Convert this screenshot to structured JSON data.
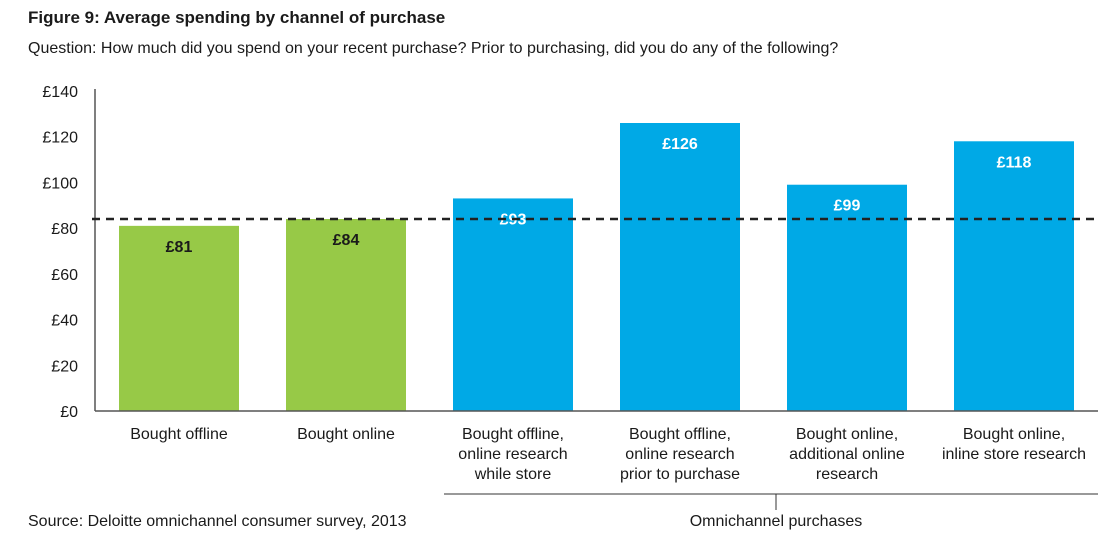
{
  "title": "Figure 9: Average spending by channel of purchase",
  "subtitle": "Question: How much did you spend on your recent purchase? Prior to purchasing, did you do any of the following?",
  "source": "Source: Deloitte omnichannel consumer survey, 2013",
  "group_label": "Omnichannel purchases",
  "chart_data": {
    "type": "bar",
    "categories": [
      [
        "Bought offline"
      ],
      [
        "Bought online"
      ],
      [
        "Bought offline,",
        "online research",
        "while store"
      ],
      [
        "Bought offline,",
        "online research",
        "prior to purchase"
      ],
      [
        "Bought online,",
        "additional online",
        "research"
      ],
      [
        "Bought online,",
        "inline store research"
      ]
    ],
    "values": [
      81,
      84,
      93,
      126,
      99,
      118
    ],
    "data_labels": [
      "£81",
      "£84",
      "£93",
      "£126",
      "£99",
      "£118"
    ],
    "colors": [
      "#97c947",
      "#97c947",
      "#00a9e6",
      "#00a9e6",
      "#00a9e6",
      "#00a9e6"
    ],
    "label_colors": [
      "#1a1a1a",
      "#1a1a1a",
      "#ffffff",
      "#ffffff",
      "#ffffff",
      "#ffffff"
    ],
    "reference_line": {
      "value": 84,
      "style": "dashed"
    },
    "ylim": [
      0,
      140
    ],
    "yticks": [
      0,
      20,
      40,
      60,
      80,
      100,
      120,
      140
    ],
    "ytick_labels": [
      "£0",
      "£20",
      "£40",
      "£60",
      "£80",
      "£100",
      "£120",
      "£140"
    ],
    "grid": false,
    "xlabel": "",
    "ylabel": ""
  }
}
